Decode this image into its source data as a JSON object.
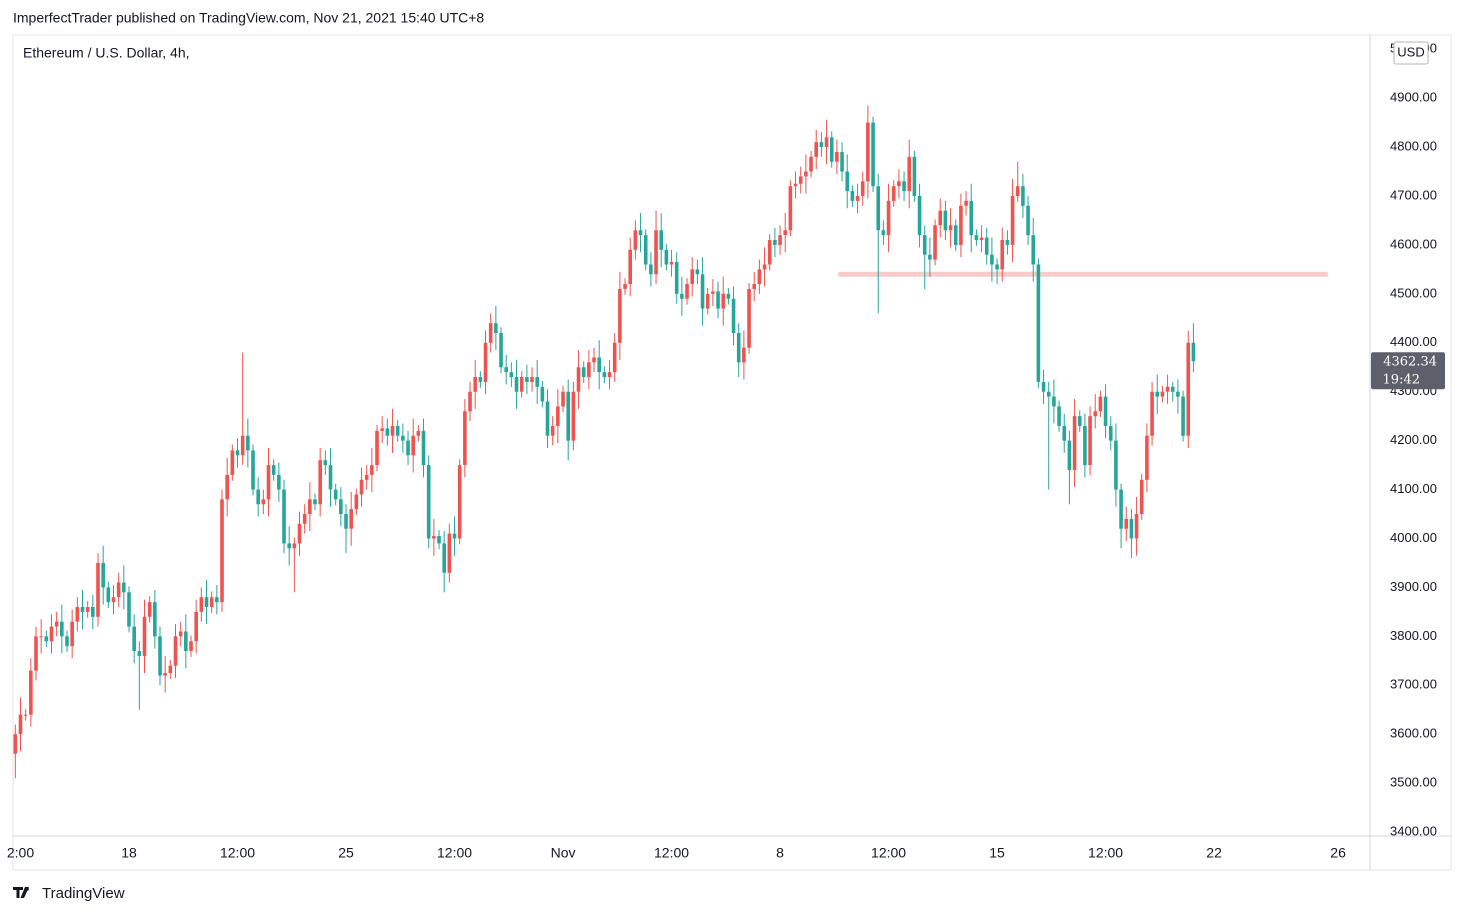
{
  "header": "ImperfectTrader published on TradingView.com, Nov 21, 2021 15:40 UTC+8",
  "footer": "TradingView",
  "chart_data": {
    "type": "candlestick",
    "title": "Ethereum / U.S. Dollar, 4h,",
    "currency": "USD",
    "countdown": "19:42",
    "up_color": "#ef5350",
    "down_color": "#26a69a",
    "grid": false,
    "xlim": [
      -89.8,
      960.7
    ],
    "xticks": [
      {
        "value": -84,
        "label": "2:00"
      },
      {
        "value": 0,
        "label": "18"
      },
      {
        "value": 84,
        "label": "12:00"
      },
      {
        "value": 168,
        "label": "25"
      },
      {
        "value": 252,
        "label": "12:00"
      },
      {
        "value": 336,
        "label": "Nov"
      },
      {
        "value": 420,
        "label": "12:00"
      },
      {
        "value": 504,
        "label": "8"
      },
      {
        "value": 588,
        "label": "12:00"
      },
      {
        "value": 672,
        "label": "15"
      },
      {
        "value": 756,
        "label": "12:00"
      },
      {
        "value": 840,
        "label": "22"
      },
      {
        "value": 936,
        "label": "26"
      }
    ],
    "ylim": [
      3392,
      5029
    ],
    "yticks": [
      {
        "value": 3400,
        "label": "3400.00"
      },
      {
        "value": 3500,
        "label": "3500.00"
      },
      {
        "value": 3600,
        "label": "3600.00"
      },
      {
        "value": 3700,
        "label": "3700.00"
      },
      {
        "value": 3800,
        "label": "3800.00"
      },
      {
        "value": 3900,
        "label": "3900.00"
      },
      {
        "value": 4000,
        "label": "4000.00"
      },
      {
        "value": 4100,
        "label": "4100.00"
      },
      {
        "value": 4200,
        "label": "4200.00"
      },
      {
        "value": 4300,
        "label": "4300.00"
      },
      {
        "value": 4400,
        "label": "4400.00"
      },
      {
        "value": 4500,
        "label": "4500.00"
      },
      {
        "value": 4600,
        "label": "4600.00"
      },
      {
        "value": 4700,
        "label": "4700.00"
      },
      {
        "value": 4800,
        "label": "4800.00"
      },
      {
        "value": 4900,
        "label": "4900.00"
      },
      {
        "value": 5000,
        "label": "5000.00"
      }
    ],
    "hline": {
      "value": 4540,
      "from": 549,
      "to": 928,
      "color": "#f9cccc"
    },
    "x": [
      -88,
      -84,
      -80,
      -76,
      -72,
      -68,
      -64,
      -60,
      -56,
      -52,
      -48,
      -44,
      -40,
      -36,
      -32,
      -28,
      -24,
      -20,
      -16,
      -12,
      -8,
      -4,
      0,
      4,
      8,
      12,
      16,
      20,
      24,
      28,
      32,
      36,
      40,
      44,
      48,
      52,
      56,
      60,
      64,
      68,
      72,
      76,
      80,
      84,
      88,
      92,
      96,
      100,
      104,
      108,
      112,
      116,
      120,
      124,
      128,
      132,
      136,
      140,
      144,
      148,
      152,
      156,
      160,
      164,
      168,
      172,
      176,
      180,
      184,
      188,
      192,
      196,
      200,
      204,
      208,
      212,
      216,
      220,
      224,
      228,
      232,
      236,
      240,
      244,
      248,
      252,
      256,
      260,
      264,
      268,
      272,
      276,
      280,
      284,
      288,
      292,
      296,
      300,
      304,
      308,
      312,
      316,
      320,
      324,
      328,
      332,
      336,
      340,
      344,
      348,
      352,
      356,
      360,
      364,
      368,
      372,
      376,
      380,
      384,
      388,
      392,
      396,
      400,
      404,
      408,
      412,
      416,
      420,
      424,
      428,
      432,
      436,
      440,
      444,
      448,
      452,
      456,
      460,
      464,
      468,
      472,
      476,
      480,
      484,
      488,
      492,
      496,
      500,
      504,
      508,
      512,
      516,
      520,
      524,
      528,
      532,
      536,
      540,
      544,
      548,
      552,
      556,
      560,
      564,
      568,
      572,
      576,
      580,
      584,
      588,
      592,
      596,
      600,
      604,
      608,
      612,
      616,
      620,
      624,
      628,
      632,
      636,
      640,
      644,
      648,
      652,
      656,
      660,
      664,
      668,
      672,
      676,
      680,
      684,
      688,
      692,
      696,
      700,
      704,
      708,
      712,
      716,
      720,
      724,
      728,
      732,
      736,
      740,
      744,
      748,
      752,
      756,
      760,
      764,
      768,
      772,
      776,
      780,
      784,
      788,
      792,
      796,
      800,
      804,
      808,
      812,
      816,
      820,
      824
    ],
    "open": [
      3560,
      3600,
      3640,
      3640,
      3730,
      3800,
      3800,
      3790,
      3820,
      3830,
      3800,
      3780,
      3830,
      3860,
      3850,
      3860,
      3840,
      3950,
      3900,
      3870,
      3880,
      3910,
      3890,
      3820,
      3770,
      3760,
      3840,
      3870,
      3800,
      3720,
      3725,
      3740,
      3800,
      3810,
      3770,
      3790,
      3850,
      3880,
      3860,
      3880,
      3870,
      4080,
      4130,
      4180,
      4170,
      4210,
      4180,
      4100,
      4070,
      4080,
      4150,
      4130,
      4100,
      3990,
      3980,
      3990,
      4030,
      4050,
      4080,
      4070,
      4160,
      4150,
      4100,
      4080,
      4050,
      4020,
      4060,
      4090,
      4120,
      4130,
      4150,
      4220,
      4225,
      4210,
      4230,
      4210,
      4200,
      4170,
      4210,
      4220,
      4150,
      4000,
      4005,
      3990,
      3930,
      4010,
      4000,
      4150,
      4260,
      4300,
      4330,
      4320,
      4400,
      4440,
      4420,
      4350,
      4340,
      4330,
      4300,
      4330,
      4320,
      4330,
      4310,
      4280,
      4210,
      4230,
      4270,
      4300,
      4200,
      4300,
      4350,
      4330,
      4360,
      4370,
      4340,
      4330,
      4340,
      4400,
      4510,
      4520,
      4590,
      4630,
      4620,
      4560,
      4540,
      4630,
      4590,
      4560,
      4565,
      4500,
      4490,
      4520,
      4550,
      4540,
      4470,
      4500,
      4505,
      4470,
      4500,
      4490,
      4420,
      4360,
      4390,
      4510,
      4520,
      4550,
      4560,
      4610,
      4600,
      4620,
      4630,
      4720,
      4725,
      4740,
      4750,
      4780,
      4810,
      4800,
      4820,
      4770,
      4790,
      4750,
      4710,
      4690,
      4700,
      4730,
      4850,
      4720,
      4630,
      4620,
      4690,
      4720,
      4730,
      4710,
      4780,
      4700,
      4620,
      4580,
      4570,
      4640,
      4670,
      4630,
      4640,
      4600,
      4680,
      4690,
      4620,
      4610,
      4615,
      4580,
      4560,
      4550,
      4610,
      4600,
      4700,
      4720,
      4680,
      4620,
      4560,
      4320,
      4300,
      4290,
      4270,
      4230,
      4200,
      4140,
      4250,
      4230,
      4150,
      4250,
      4260,
      4290,
      4230,
      4200,
      4100,
      4020,
      4040,
      4000,
      4050,
      4120,
      4210,
      4300,
      4290,
      4300,
      4310,
      4300,
      4290,
      4210,
      4400
    ],
    "high": [
      3620,
      3675,
      3652,
      3755,
      3820,
      3835,
      3812,
      3845,
      3850,
      3865,
      3812,
      3855,
      3880,
      3895,
      3872,
      3885,
      3970,
      3985,
      3912,
      3905,
      3930,
      3945,
      3902,
      3845,
      3790,
      3875,
      3882,
      3895,
      3820,
      3760,
      3752,
      3825,
      3830,
      3845,
      3802,
      3875,
      3900,
      3915,
      3892,
      3905,
      4100,
      4165,
      4192,
      4205,
      4380,
      4245,
      4192,
      4125,
      4100,
      4185,
      4162,
      4155,
      4120,
      4025,
      4002,
      4055,
      4070,
      4115,
      4092,
      4185,
      4180,
      4185,
      4112,
      4105,
      4070,
      4095,
      4102,
      4145,
      4150,
      4185,
      4232,
      4250,
      4245,
      4265,
      4242,
      4235,
      4220,
      4245,
      4232,
      4245,
      4170,
      4040,
      4017,
      4015,
      4030,
      4045,
      4162,
      4285,
      4320,
      4365,
      4342,
      4425,
      4460,
      4475,
      4432,
      4375,
      4360,
      4365,
      4342,
      4355,
      4350,
      4365,
      4322,
      4305,
      4250,
      4305,
      4312,
      4325,
      4320,
      4385,
      4362,
      4385,
      4390,
      4405,
      4352,
      4365,
      4420,
      4545,
      4532,
      4615,
      4650,
      4665,
      4632,
      4585,
      4670,
      4665,
      4602,
      4590,
      4585,
      4535,
      4532,
      4575,
      4570,
      4575,
      4512,
      4530,
      4525,
      4535,
      4512,
      4515,
      4440,
      4425,
      4522,
      4545,
      4570,
      4595,
      4622,
      4635,
      4640,
      4665,
      4732,
      4750,
      4760,
      4785,
      4792,
      4835,
      4830,
      4855,
      4832,
      4815,
      4810,
      4785,
      4722,
      4725,
      4750,
      4885,
      4862,
      4745,
      4650,
      4725,
      4732,
      4755,
      4750,
      4815,
      4792,
      4725,
      4640,
      4615,
      4652,
      4695,
      4690,
      4675,
      4652,
      4705,
      4710,
      4725,
      4632,
      4640,
      4635,
      4615,
      4572,
      4635,
      4630,
      4735,
      4770,
      4745,
      4700,
      4655,
      4572,
      4345,
      4320,
      4325,
      4282,
      4255,
      4220,
      4285,
      4262,
      4255,
      4270,
      4295,
      4302,
      4315,
      4250,
      4235,
      4112,
      4065,
      4060,
      4085,
      4132,
      4235,
      4320,
      4335,
      4312,
      4335,
      4320,
      4325,
      4302,
      4425,
      4440
    ],
    "low": [
      3510,
      3565,
      3628,
      3615,
      3710,
      3765,
      3778,
      3765,
      3800,
      3765,
      3768,
      3755,
      3810,
      3815,
      3838,
      3815,
      3820,
      3865,
      3858,
      3845,
      3860,
      3855,
      3808,
      3745,
      3650,
      3725,
      3828,
      3775,
      3700,
      3685,
      3713,
      3715,
      3780,
      3735,
      3758,
      3765,
      3830,
      3825,
      3848,
      3845,
      3850,
      4045,
      4118,
      4145,
      4150,
      4145,
      4088,
      4045,
      4050,
      4045,
      4118,
      4075,
      3970,
      3945,
      3890,
      3965,
      4010,
      4015,
      4058,
      4045,
      4130,
      4065,
      4068,
      4025,
      3970,
      3985,
      4048,
      4065,
      4100,
      4095,
      4138,
      4195,
      4190,
      4175,
      4198,
      4175,
      4150,
      4135,
      4198,
      4125,
      3980,
      3965,
      3978,
      3890,
      3910,
      3965,
      3988,
      4125,
      4240,
      4265,
      4308,
      4295,
      4380,
      4385,
      4338,
      4315,
      4310,
      4265,
      4288,
      4295,
      4300,
      4275,
      4268,
      4185,
      4190,
      4195,
      4258,
      4160,
      4180,
      4265,
      4318,
      4305,
      4340,
      4305,
      4318,
      4305,
      4320,
      4365,
      4498,
      4495,
      4570,
      4585,
      4548,
      4515,
      4520,
      4555,
      4548,
      4535,
      4480,
      4455,
      4478,
      4495,
      4520,
      4435,
      4458,
      4475,
      4450,
      4435,
      4478,
      4395,
      4330,
      4325,
      4378,
      4485,
      4500,
      4515,
      4548,
      4575,
      4580,
      4585,
      4618,
      4695,
      4705,
      4705,
      4738,
      4755,
      4780,
      4765,
      4758,
      4745,
      4730,
      4675,
      4678,
      4665,
      4680,
      4695,
      4708,
      4460,
      4600,
      4585,
      4678,
      4695,
      4690,
      4675,
      4688,
      4595,
      4510,
      4535,
      4558,
      4615,
      4610,
      4595,
      4588,
      4575,
      4660,
      4585,
      4598,
      4585,
      4560,
      4525,
      4520,
      4525,
      4580,
      4565,
      4688,
      4655,
      4600,
      4525,
      4308,
      4275,
      4100,
      4235,
      4218,
      4175,
      4070,
      4105,
      4218,
      4125,
      4130,
      4225,
      4248,
      4205,
      4180,
      4065,
      3980,
      3995,
      3960,
      3965,
      4038,
      4095,
      4190,
      4255,
      4278,
      4275,
      4280,
      4255,
      4198,
      4185,
      4340
    ],
    "close": [
      3600,
      3640,
      3640,
      3730,
      3800,
      3800,
      3790,
      3820,
      3830,
      3800,
      3780,
      3830,
      3860,
      3850,
      3860,
      3840,
      3950,
      3900,
      3870,
      3880,
      3910,
      3890,
      3820,
      3770,
      3760,
      3840,
      3870,
      3800,
      3720,
      3725,
      3740,
      3800,
      3810,
      3770,
      3790,
      3850,
      3880,
      3860,
      3880,
      3870,
      4080,
      4130,
      4180,
      4170,
      4210,
      4180,
      4100,
      4070,
      4080,
      4150,
      4130,
      4100,
      3990,
      3980,
      3990,
      4030,
      4050,
      4080,
      4070,
      4160,
      4150,
      4100,
      4080,
      4050,
      4020,
      4060,
      4090,
      4120,
      4130,
      4150,
      4220,
      4225,
      4210,
      4230,
      4210,
      4200,
      4170,
      4210,
      4220,
      4150,
      4000,
      4005,
      3990,
      3930,
      4010,
      4000,
      4150,
      4260,
      4300,
      4330,
      4320,
      4400,
      4440,
      4420,
      4350,
      4340,
      4330,
      4300,
      4330,
      4320,
      4330,
      4310,
      4280,
      4210,
      4230,
      4270,
      4300,
      4200,
      4300,
      4350,
      4330,
      4360,
      4370,
      4340,
      4330,
      4340,
      4400,
      4510,
      4520,
      4590,
      4630,
      4620,
      4560,
      4540,
      4630,
      4590,
      4560,
      4565,
      4500,
      4490,
      4520,
      4550,
      4540,
      4470,
      4500,
      4505,
      4470,
      4500,
      4490,
      4420,
      4360,
      4390,
      4510,
      4520,
      4550,
      4560,
      4610,
      4600,
      4620,
      4630,
      4720,
      4725,
      4740,
      4750,
      4780,
      4810,
      4800,
      4820,
      4770,
      4790,
      4750,
      4710,
      4690,
      4700,
      4730,
      4850,
      4720,
      4630,
      4620,
      4690,
      4720,
      4730,
      4710,
      4780,
      4700,
      4620,
      4580,
      4570,
      4640,
      4670,
      4630,
      4640,
      4600,
      4680,
      4690,
      4620,
      4610,
      4615,
      4580,
      4560,
      4550,
      4610,
      4600,
      4700,
      4720,
      4680,
      4620,
      4560,
      4320,
      4300,
      4290,
      4270,
      4230,
      4200,
      4140,
      4250,
      4230,
      4150,
      4250,
      4260,
      4290,
      4230,
      4200,
      4100,
      4020,
      4040,
      4000,
      4050,
      4120,
      4210,
      4300,
      4290,
      4300,
      4310,
      4300,
      4290,
      4210,
      4400,
      4362.34
    ]
  }
}
